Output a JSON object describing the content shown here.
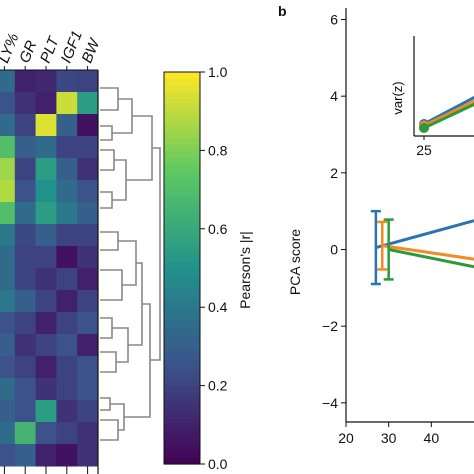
{
  "chart_data": [
    {
      "type": "heatmap",
      "column_labels": [
        "LY%",
        "GR",
        "PLT",
        "IGF1",
        "BW"
      ],
      "colorbar": {
        "label": "Pearson's |r|",
        "ticks": [
          "0.0",
          "0.2",
          "0.4",
          "0.6",
          "0.8",
          "1.0"
        ],
        "range": [
          0,
          1
        ],
        "colormap": "viridis"
      },
      "values": [
        [
          0.35,
          0.1,
          0.12,
          0.22,
          0.2
        ],
        [
          0.25,
          0.15,
          0.1,
          0.92,
          0.55
        ],
        [
          0.35,
          0.2,
          0.95,
          0.3,
          0.05
        ],
        [
          0.7,
          0.3,
          0.35,
          0.2,
          0.2
        ],
        [
          0.85,
          0.2,
          0.55,
          0.3,
          0.15
        ],
        [
          0.88,
          0.25,
          0.5,
          0.35,
          0.25
        ],
        [
          0.7,
          0.35,
          0.55,
          0.4,
          0.3
        ],
        [
          0.4,
          0.22,
          0.3,
          0.2,
          0.2
        ],
        [
          0.35,
          0.2,
          0.2,
          0.05,
          0.15
        ],
        [
          0.35,
          0.2,
          0.15,
          0.2,
          0.1
        ],
        [
          0.4,
          0.3,
          0.2,
          0.1,
          0.2
        ],
        [
          0.25,
          0.2,
          0.1,
          0.2,
          0.25
        ],
        [
          0.3,
          0.15,
          0.2,
          0.25,
          0.1
        ],
        [
          0.25,
          0.2,
          0.1,
          0.2,
          0.25
        ],
        [
          0.35,
          0.25,
          0.15,
          0.2,
          0.25
        ],
        [
          0.3,
          0.25,
          0.55,
          0.15,
          0.2
        ],
        [
          0.35,
          0.65,
          0.25,
          0.2,
          0.15
        ],
        [
          0.25,
          0.3,
          0.1,
          0.05,
          0.15
        ]
      ]
    },
    {
      "type": "line",
      "panel_label": "b",
      "xlabel": "",
      "ylabel": "PCA score",
      "xlim": [
        20,
        50
      ],
      "ylim": [
        -4.5,
        6.3
      ],
      "x_ticks": [
        "20",
        "30",
        "40"
      ],
      "y_ticks": [
        "−4",
        "−2",
        "0",
        "2",
        "4",
        "6"
      ],
      "series": [
        {
          "color": "#2a74b4",
          "x": [
            27,
            50
          ],
          "y": [
            0.05,
            0.75
          ],
          "err_x": 27,
          "err_y": 0.05,
          "err": 0.95
        },
        {
          "color": "#f28a25",
          "x": [
            28.5,
            50
          ],
          "y": [
            0.1,
            -0.25
          ],
          "err_x": 28.5,
          "err_y": 0.1,
          "err": 0.62
        },
        {
          "color": "#2c9a3b",
          "x": [
            30,
            50
          ],
          "y": [
            0.0,
            -0.45
          ],
          "err_x": 30,
          "err_y": 0.0,
          "err": 0.78
        }
      ],
      "inset": {
        "ylabel": "var(z)",
        "x_ticks": [
          "25"
        ],
        "series": [
          {
            "color": "#2a74b4",
            "x": [
              25,
              32
            ],
            "y": [
              0.05,
              0.42
            ]
          },
          {
            "color": "#f28a25",
            "x": [
              25,
              32
            ],
            "y": [
              0.03,
              0.37
            ]
          },
          {
            "color": "#2c9a3b",
            "x": [
              25,
              32
            ],
            "y": [
              0.0,
              0.33
            ]
          }
        ]
      }
    }
  ]
}
